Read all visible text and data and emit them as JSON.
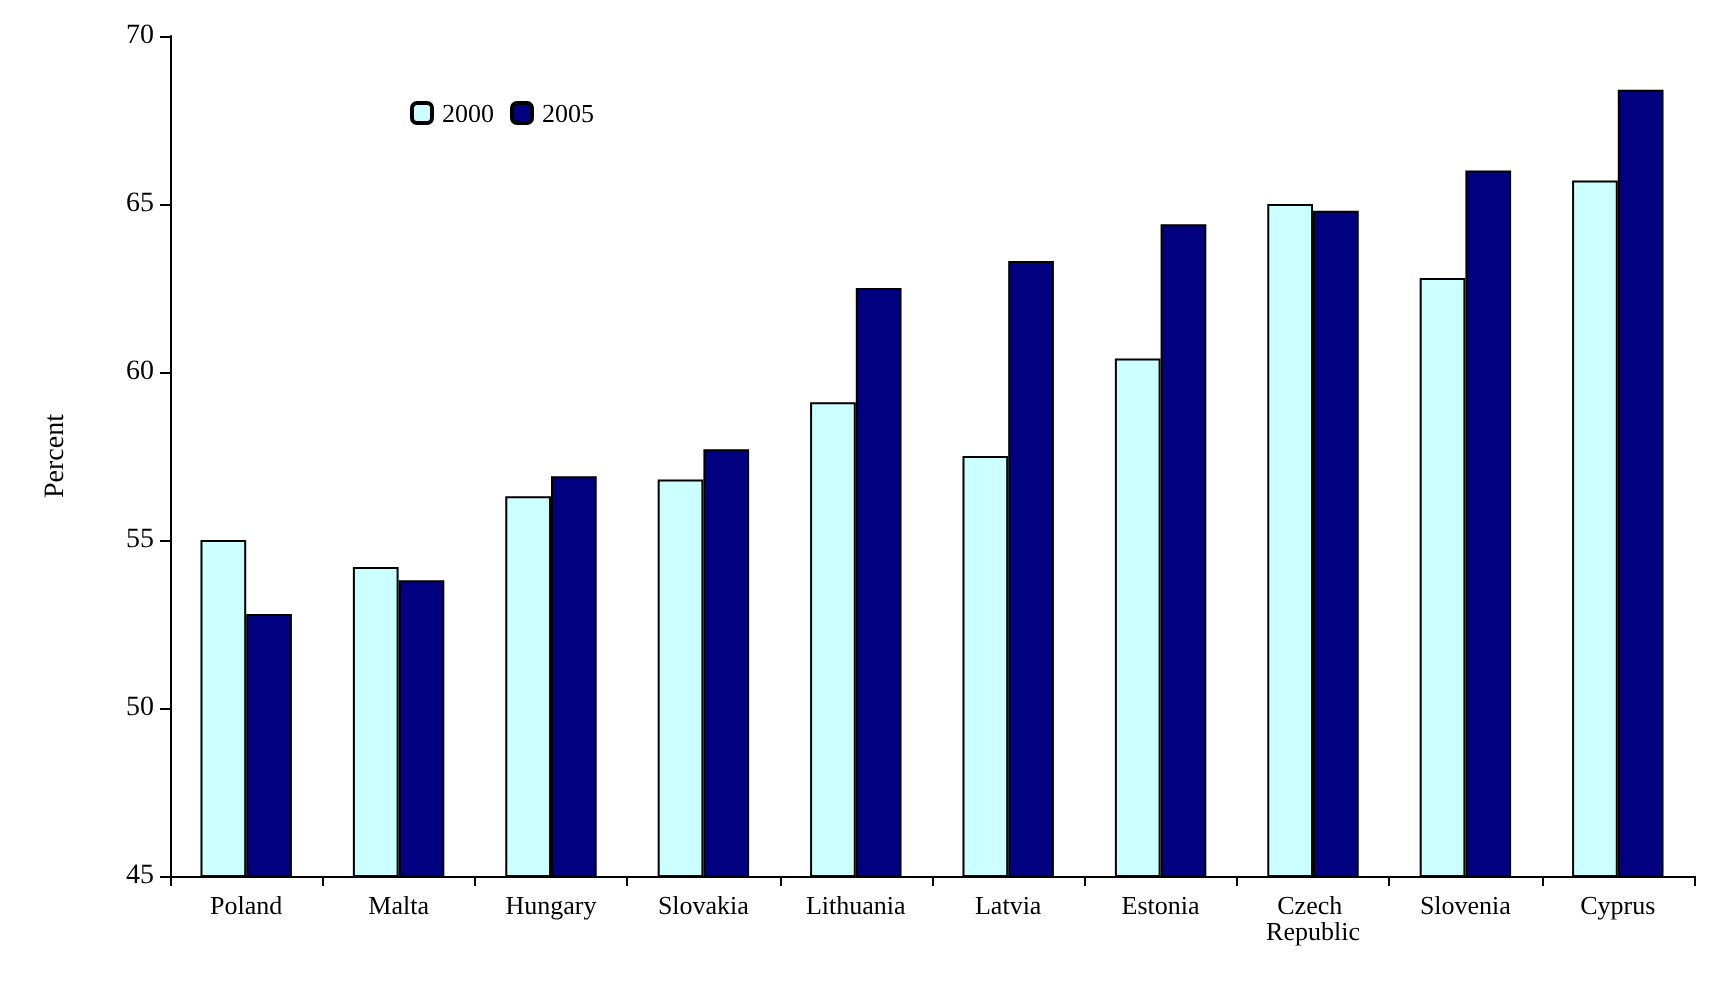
{
  "chart_data": {
    "type": "bar",
    "ylabel": "Percent",
    "categories": [
      "Poland",
      "Malta",
      "Hungary",
      "Slovakia",
      "Lithuania",
      "Latvia",
      "Estonia",
      "Czech Republic",
      "Slovenia",
      "Cyprus"
    ],
    "series": [
      {
        "name": "2000",
        "color": "#ccffff",
        "values": [
          55.0,
          54.2,
          56.3,
          56.8,
          59.1,
          57.5,
          60.4,
          65.0,
          62.8,
          65.7
        ]
      },
      {
        "name": "2005",
        "color": "#000080",
        "values": [
          52.8,
          53.8,
          56.9,
          57.7,
          62.5,
          63.3,
          64.4,
          64.8,
          66.0,
          68.4
        ]
      }
    ],
    "ylim": [
      45,
      70
    ],
    "yticks": [
      45,
      50,
      55,
      60,
      65,
      70
    ],
    "grid": false,
    "legend": "top left"
  }
}
